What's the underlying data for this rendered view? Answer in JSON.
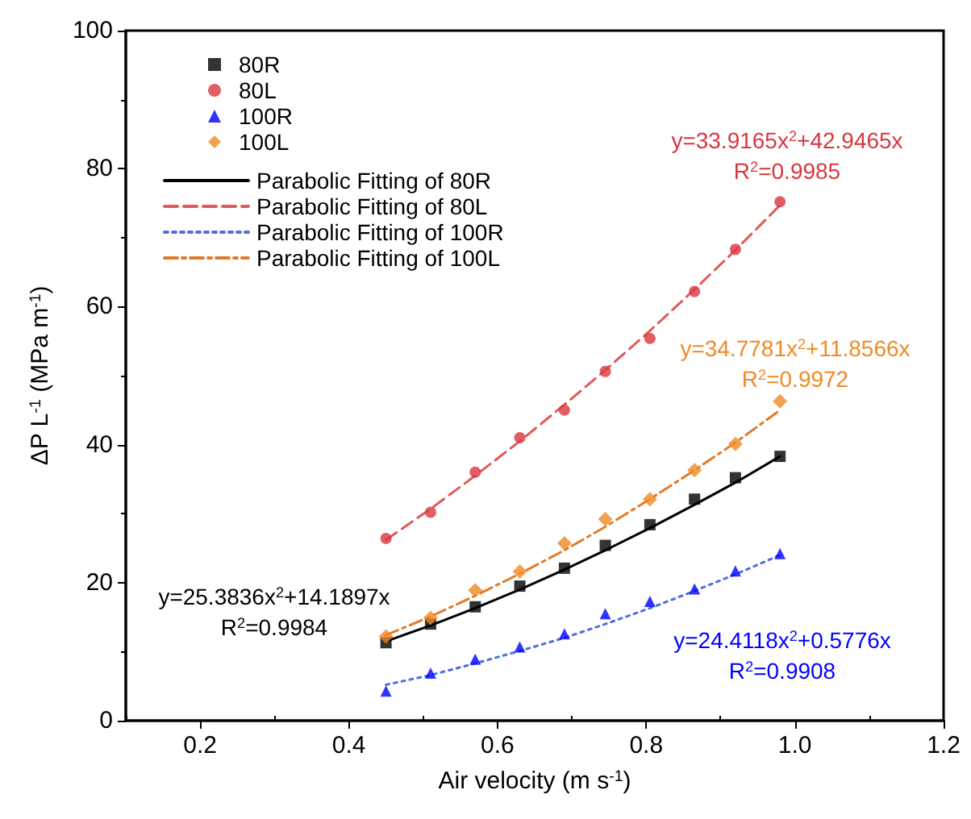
{
  "chart_data": {
    "type": "scatter",
    "xlabel": "Air velocity (m s$^{-1}$)",
    "ylabel": "ΔP L$^{-1}$ (MPa m$^{-1}$)",
    "x": [
      0.45,
      0.51,
      0.57,
      0.63,
      0.69,
      0.745,
      0.805,
      0.865,
      0.92,
      0.98
    ],
    "series": [
      {
        "name": "80R",
        "type": "scatter",
        "marker": "square",
        "color": "#000000",
        "values": [
          11.3,
          14.0,
          16.5,
          19.5,
          22.1,
          25.4,
          28.4,
          32.1,
          35.2,
          38.3
        ]
      },
      {
        "name": "80L",
        "type": "scatter",
        "marker": "circle",
        "color": "#d9363e",
        "values": [
          26.4,
          30.2,
          36.0,
          41.0,
          45.0,
          50.6,
          55.4,
          62.2,
          68.3,
          75.2
        ]
      },
      {
        "name": "100R",
        "type": "scatter",
        "marker": "triangle",
        "color": "#0000ff",
        "values": [
          4.3,
          6.9,
          8.9,
          10.7,
          12.6,
          15.5,
          17.3,
          19.1,
          21.7,
          24.2
        ]
      },
      {
        "name": "100L",
        "type": "scatter",
        "marker": "diamond",
        "color": "#f08a24",
        "values": [
          12.2,
          14.9,
          18.9,
          21.6,
          25.7,
          29.2,
          32.1,
          36.3,
          40.1,
          46.3
        ]
      },
      {
        "name": "Parabolic Fitting of 80R",
        "type": "line",
        "line_style": "solid",
        "color": "#000000",
        "values": [
          11.5,
          13.8,
          16.3,
          19.0,
          21.9,
          24.7,
          27.9,
          31.3,
          34.5,
          38.3
        ]
      },
      {
        "name": "Parabolic Fitting of 80L",
        "type": "line",
        "line_style": "dashed",
        "color": "#e05a5a",
        "values": [
          26.2,
          30.7,
          35.5,
          40.5,
          45.8,
          50.8,
          56.5,
          62.5,
          68.2,
          74.7
        ]
      },
      {
        "name": "Parabolic Fitting of 100R",
        "type": "line",
        "line_style": "dotted",
        "color": "#4d6fe0",
        "values": [
          5.2,
          6.6,
          8.3,
          10.1,
          12.0,
          14.0,
          16.3,
          18.8,
          21.2,
          24.0
        ]
      },
      {
        "name": "Parabolic Fitting of 100L",
        "type": "line",
        "line_style": "dashdot",
        "color": "#e07b2a",
        "values": [
          12.4,
          15.1,
          18.1,
          21.3,
          24.7,
          28.1,
          32.1,
          36.3,
          40.3,
          45.0
        ]
      }
    ],
    "xlim": [
      0.1,
      1.2
    ],
    "xticks": [
      0.2,
      0.4,
      0.6,
      0.8,
      {
        "value": 1.0,
        "label": "1.0"
      },
      1.2
    ],
    "ylim": [
      0,
      100
    ],
    "yticks": [
      0,
      20,
      40,
      60,
      80,
      100
    ],
    "grid": false,
    "legend": "top left",
    "annotations": [
      "y=25.3836x$^{2}$+14.1897x",
      "R$^{2}$=0.9984",
      "y=33.9165x$^{2}$+42.9465x",
      "R$^{2}$=0.9985",
      "y=24.4118x$^{2}$+0.5776x",
      "R$^{2}$=0.9908",
      "y=34.7781x$^{2}$+11.8566x",
      "R$^{2}$=0.9972"
    ]
  }
}
